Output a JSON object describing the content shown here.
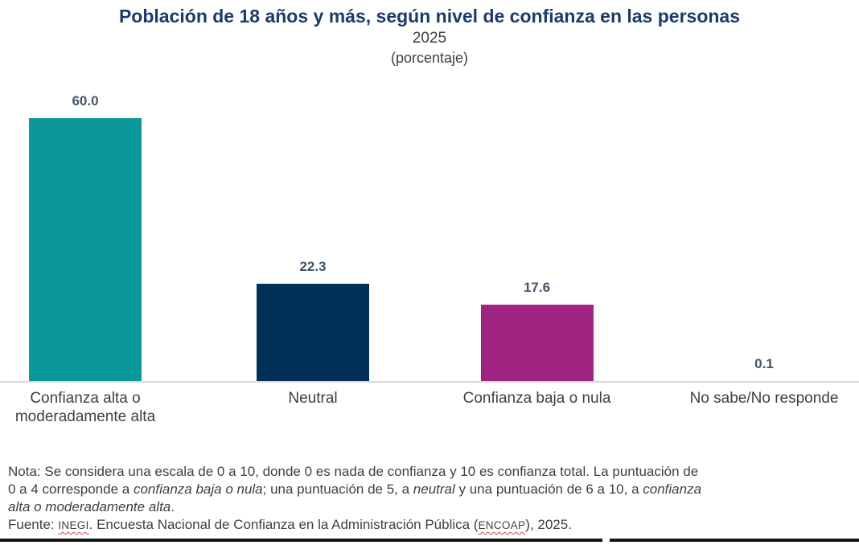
{
  "chart_data": {
    "type": "bar",
    "title": "Población de 18 años y más, según nivel de confianza en las personas",
    "subtitle": "2025",
    "unit_label": "(porcentaje)",
    "categories": [
      "Confianza alta o\nmoderadamente alta",
      "Neutral",
      "Confianza baja o nula",
      "No sabe/No responde"
    ],
    "values": [
      60.0,
      22.3,
      17.6,
      0.1
    ],
    "value_labels": [
      "60.0",
      "22.3",
      "17.6",
      "0.1"
    ],
    "bar_colors": [
      "#0a989b",
      "#013158",
      "#a02481",
      "#9e9e9e"
    ],
    "ylim": [
      0,
      68
    ],
    "grid": false,
    "legend": "none",
    "value_label_color": "#44546a",
    "title_color": "#1b3b6c",
    "axis_line_color": "#d9d9d9"
  },
  "notes": {
    "note_lines": [
      [
        {
          "text": "Nota: Se considera una escala de 0 a 10, donde 0 es nada de confianza y 10 es confianza total. La puntuación de",
          "italic": false
        }
      ],
      [
        {
          "text": "0 a 4 corresponde a ",
          "italic": false
        },
        {
          "text": "confianza baja o nula",
          "italic": true
        },
        {
          "text": "; una puntuación de 5, a ",
          "italic": false
        },
        {
          "text": "neutral",
          "italic": true
        },
        {
          "text": " y una puntuación de 6 a 10, a ",
          "italic": false
        },
        {
          "text": "confianza",
          "italic": true
        }
      ],
      [
        {
          "text": "alta o moderadamente alta",
          "italic": true
        },
        {
          "text": ".",
          "italic": false
        }
      ]
    ],
    "source_segments": [
      {
        "text": "Fuente: ",
        "style": "normal"
      },
      {
        "text": "INEGI",
        "style": "acronym"
      },
      {
        "text": ". Encuesta Nacional de Confianza en la Administración Pública (",
        "style": "normal"
      },
      {
        "text": "ENCOAP",
        "style": "acronym"
      },
      {
        "text": "), 2025.",
        "style": "normal"
      }
    ]
  }
}
